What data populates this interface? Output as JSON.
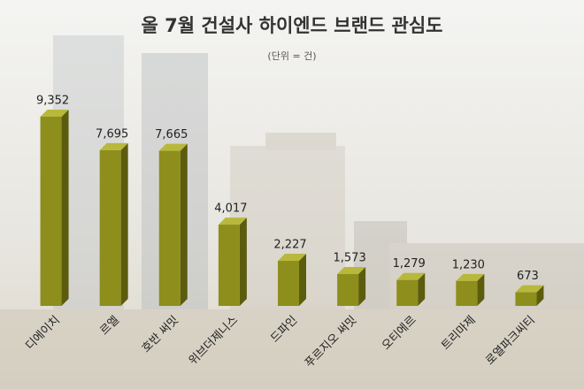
{
  "chart_data": {
    "type": "bar3d",
    "title": "올 7월 건설사 하이엔드 브랜드 관심도",
    "subtitle": "(단위 = 건)",
    "categories": [
      "디에이치",
      "르엘",
      "호반 써밋",
      "위브더제니스",
      "드파인",
      "푸르지오 써밋",
      "오티에르",
      "트리마제",
      "로열파크씨티"
    ],
    "values": [
      9352,
      7695,
      7665,
      4017,
      2227,
      1573,
      1279,
      1230,
      673
    ],
    "value_labels": [
      "9,352",
      "7,695",
      "7,665",
      "4,017",
      "2,227",
      "1,573",
      "1,279",
      "1,230",
      "673"
    ],
    "color": "#8e8e1c"
  }
}
